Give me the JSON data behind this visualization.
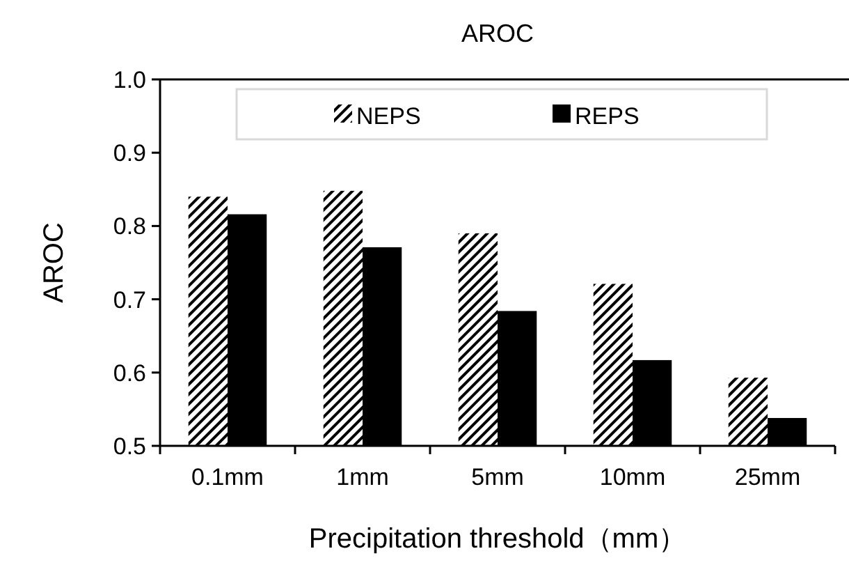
{
  "chart_data": {
    "type": "bar",
    "title": "AROC",
    "xlabel": "Precipitation threshold（mm）",
    "ylabel": "AROC",
    "categories": [
      "0.1mm",
      "1mm",
      "5mm",
      "10mm",
      "25mm"
    ],
    "series": [
      {
        "name": "NEPS",
        "color": "#000000",
        "values": [
          0.84,
          0.848,
          0.79,
          0.721,
          0.593
        ]
      },
      {
        "name": "REPS",
        "color": "#000000",
        "values": [
          0.816,
          0.771,
          0.684,
          0.617,
          0.538
        ]
      }
    ],
    "ylim": [
      0.5,
      1.0
    ],
    "yticks": [
      {
        "value": 0.5,
        "label": "0.5"
      },
      {
        "value": 0.6,
        "label": "0.6"
      },
      {
        "value": 0.7,
        "label": "0.7"
      },
      {
        "value": 0.8,
        "label": "0.8"
      },
      {
        "value": 0.9,
        "label": "0.9"
      },
      {
        "value": 1.0,
        "label": "1.0"
      }
    ],
    "grid": false,
    "legend": "top"
  }
}
